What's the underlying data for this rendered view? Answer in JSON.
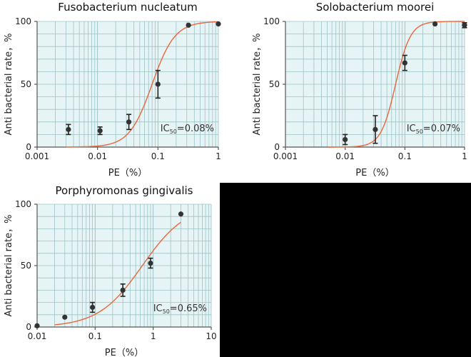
{
  "colors": {
    "plot_bg": "#e7f4f5",
    "grid": "#9cc3c8",
    "curve": "#e8673c",
    "marker": "#333333",
    "empty_panel": "#000000"
  },
  "chart_data": [
    {
      "type": "scatter",
      "title": "Fusobacterium nucleatum",
      "xlabel": "PE（%）",
      "ylabel": "Anti bacterial rate，%",
      "x_scale": "log",
      "xlim": [
        0.001,
        1
      ],
      "ylim": [
        0,
        100
      ],
      "x_ticks": [
        0.001,
        0.01,
        0.1,
        1
      ],
      "x_tick_labels": [
        "0.001",
        "0.01",
        "0.1",
        "1"
      ],
      "y_ticks": [
        0,
        50,
        100
      ],
      "y_tick_labels": [
        "0",
        "50",
        "100"
      ],
      "ic50_label": "IC",
      "ic50_sub": "50",
      "ic50_value": "=0.08%",
      "points": [
        {
          "x": 0.0033,
          "y": 14,
          "err": 4
        },
        {
          "x": 0.011,
          "y": 13,
          "err": 3
        },
        {
          "x": 0.033,
          "y": 20,
          "err": 6
        },
        {
          "x": 0.1,
          "y": 50,
          "err": 11
        },
        {
          "x": 0.32,
          "y": 97
        },
        {
          "x": 1,
          "y": 98
        }
      ],
      "fit": {
        "ic50": 0.08,
        "hill": 2.3,
        "from": 0.003,
        "to": 1
      },
      "grid": true
    },
    {
      "type": "scatter",
      "title": "Solobacterium moorei",
      "xlabel": "PE（%）",
      "ylabel": "Anti bacterial rate，%",
      "x_scale": "log",
      "xlim": [
        0.001,
        1
      ],
      "ylim": [
        0,
        100
      ],
      "x_ticks": [
        0.001,
        0.01,
        0.1,
        1
      ],
      "x_tick_labels": [
        "0.001",
        "0.01",
        "0.1",
        "1"
      ],
      "y_ticks": [
        0,
        50,
        100
      ],
      "y_tick_labels": [
        "0",
        "50",
        "100"
      ],
      "ic50_label": "IC",
      "ic50_sub": "50",
      "ic50_value": "=0.07%",
      "points": [
        {
          "x": 0.01,
          "y": 6,
          "err": 4
        },
        {
          "x": 0.032,
          "y": 14,
          "err": 11
        },
        {
          "x": 0.1,
          "y": 67,
          "err": 6
        },
        {
          "x": 0.32,
          "y": 98
        },
        {
          "x": 1,
          "y": 97,
          "err": 2
        }
      ],
      "fit": {
        "ic50": 0.07,
        "hill": 3.5,
        "from": 0.005,
        "to": 1
      },
      "grid": true
    },
    {
      "type": "scatter",
      "title": "Porphyromonas gingivalis",
      "xlabel": "PE（%）",
      "ylabel": "Anti bacterial rate，%",
      "x_scale": "log",
      "xlim": [
        0.01,
        10
      ],
      "ylim": [
        0,
        100
      ],
      "x_ticks": [
        0.01,
        0.1,
        1,
        10
      ],
      "x_tick_labels": [
        "0.01",
        "0.1",
        "1",
        "10"
      ],
      "y_ticks": [
        0,
        50,
        100
      ],
      "y_tick_labels": [
        "0",
        "50",
        "100"
      ],
      "ic50_label": "IC",
      "ic50_sub": "50",
      "ic50_value": "=0.65%",
      "points": [
        {
          "x": 0.01,
          "y": 1
        },
        {
          "x": 0.03,
          "y": 8
        },
        {
          "x": 0.09,
          "y": 16,
          "err": 4
        },
        {
          "x": 0.3,
          "y": 30,
          "err": 5
        },
        {
          "x": 0.9,
          "y": 52,
          "err": 4
        },
        {
          "x": 3,
          "y": 92
        }
      ],
      "fit": {
        "ic50": 0.65,
        "hill": 1.15,
        "from": 0.02,
        "to": 3
      },
      "grid": true
    }
  ]
}
